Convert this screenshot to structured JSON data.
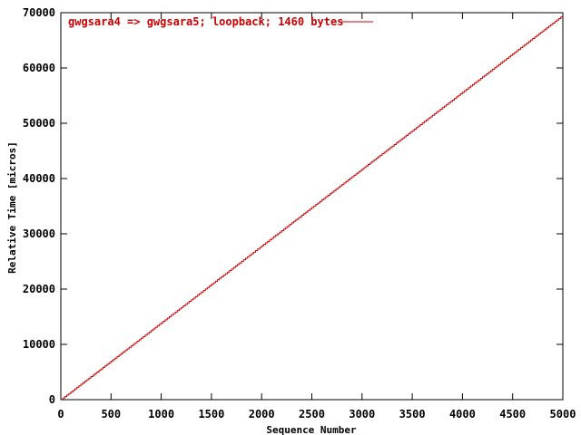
{
  "chart_data": {
    "type": "line",
    "title": "",
    "xlabel": "Sequence Number",
    "ylabel": "Relative Time [micros]",
    "xlim": [
      0,
      5000
    ],
    "ylim": [
      0,
      70000
    ],
    "xticks": [
      0,
      500,
      1000,
      1500,
      2000,
      2500,
      3000,
      3500,
      4000,
      4500,
      5000
    ],
    "yticks": [
      0,
      10000,
      20000,
      30000,
      40000,
      50000,
      60000,
      70000
    ],
    "grid": false,
    "legend_position": "top-left",
    "series": [
      {
        "name": "gwgsara4 => gwgsara5; loopback; 1460 bytes",
        "color": "#cc0000",
        "style": "step",
        "x": [
          0,
          5000
        ],
        "y": [
          0,
          69500
        ]
      }
    ]
  }
}
